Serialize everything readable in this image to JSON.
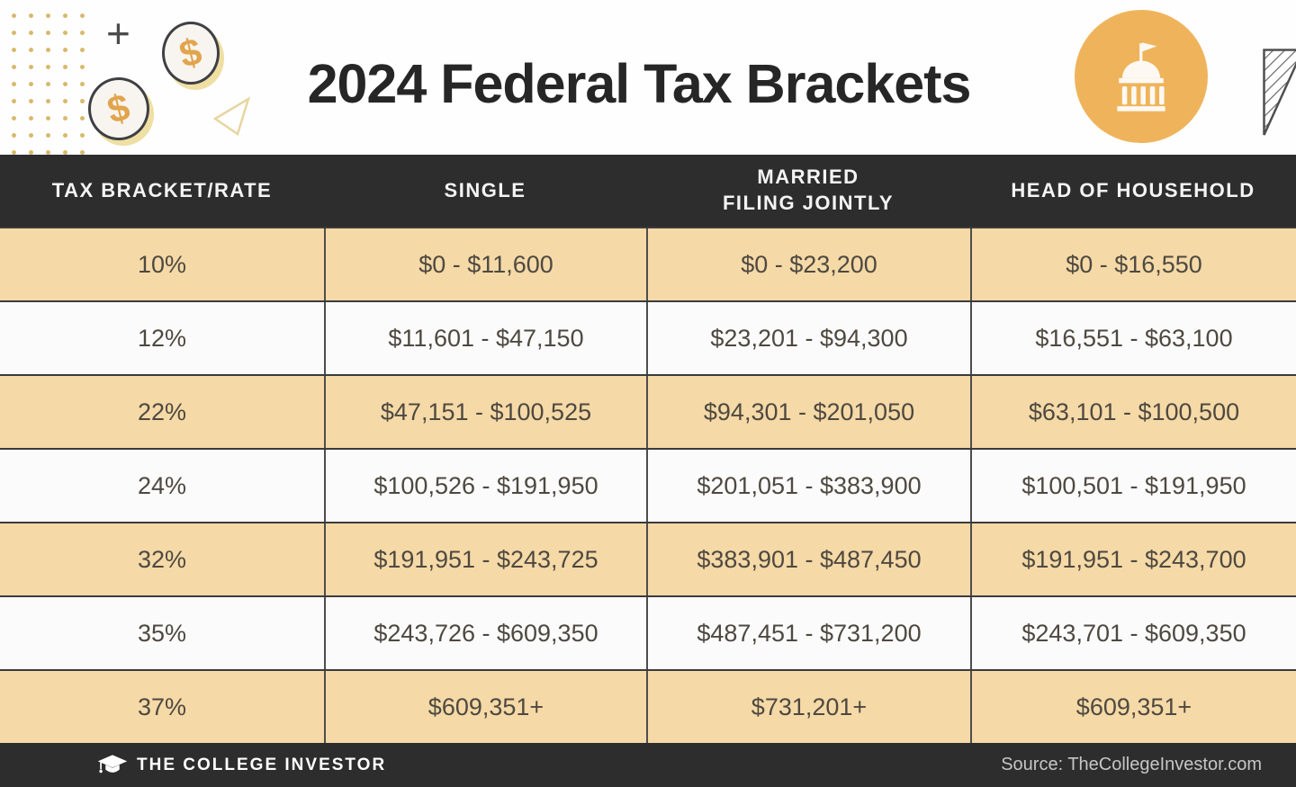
{
  "page": {
    "title": "2024 Federal Tax Brackets"
  },
  "decorations": {
    "plus_glyph": "+",
    "coin_dollar_glyph": "$"
  },
  "table": {
    "headers": [
      {
        "lines": [
          "TAX BRACKET/RATE",
          ""
        ]
      },
      {
        "lines": [
          "SINGLE",
          ""
        ]
      },
      {
        "lines": [
          "MARRIED",
          "FILING JOINTLY"
        ]
      },
      {
        "lines": [
          "HEAD OF HOUSEHOLD",
          ""
        ]
      }
    ],
    "rows": [
      {
        "cells": [
          "10%",
          "$0 - $11,600",
          "$0 - $23,200",
          "$0 - $16,550"
        ]
      },
      {
        "cells": [
          "12%",
          "$11,601 - $47,150",
          "$23,201 - $94,300",
          "$16,551 - $63,100"
        ]
      },
      {
        "cells": [
          "22%",
          "$47,151 - $100,525",
          "$94,301 - $201,050",
          "$63,101 - $100,500"
        ]
      },
      {
        "cells": [
          "24%",
          "$100,526 - $191,950",
          "$201,051 - $383,900",
          "$100,501 - $191,950"
        ]
      },
      {
        "cells": [
          "32%",
          "$191,951 - $243,725",
          "$383,901 - $487,450",
          "$191,951 - $243,700"
        ]
      },
      {
        "cells": [
          "35%",
          "$243,726 - $609,350",
          "$487,451 - $731,200",
          "$243,701 - $609,350"
        ]
      },
      {
        "cells": [
          "37%",
          "$609,351+",
          "$731,201+",
          "$609,351+"
        ]
      }
    ]
  },
  "footer": {
    "brand": "THE COLLEGE INVESTOR",
    "source": "Source: TheCollegeInvestor.com"
  },
  "colors": {
    "accent_orange": "#EFB45B",
    "row_tan": "#F5D9A7",
    "row_white": "#FBFBFB",
    "band_dark": "#2D2D2D",
    "cell_text": "#4E4940",
    "dot_gold": "#D7B96B",
    "coin_dollar": "#E2A44C"
  },
  "chart_data": {
    "type": "table",
    "title": "2024 Federal Tax Brackets",
    "columns": [
      "TAX BRACKET/RATE",
      "SINGLE",
      "MARRIED FILING JOINTLY",
      "HEAD OF HOUSEHOLD"
    ],
    "rows": [
      [
        "10%",
        "$0 - $11,600",
        "$0 - $23,200",
        "$0 - $16,550"
      ],
      [
        "12%",
        "$11,601 - $47,150",
        "$23,201 - $94,300",
        "$16,551 - $63,100"
      ],
      [
        "22%",
        "$47,151 - $100,525",
        "$94,301 - $201,050",
        "$63,101 - $100,500"
      ],
      [
        "24%",
        "$100,526 - $191,950",
        "$201,051 - $383,900",
        "$100,501 - $191,950"
      ],
      [
        "32%",
        "$191,951 - $243,725",
        "$383,901 - $487,450",
        "$191,951 - $243,700"
      ],
      [
        "35%",
        "$243,726 - $609,350",
        "$487,451 - $731,200",
        "$243,701 - $609,350"
      ],
      [
        "37%",
        "$609,351+",
        "$731,201+",
        "$609,351+"
      ]
    ],
    "source": "Source: TheCollegeInvestor.com",
    "row_striping": [
      "tan",
      "white"
    ]
  }
}
